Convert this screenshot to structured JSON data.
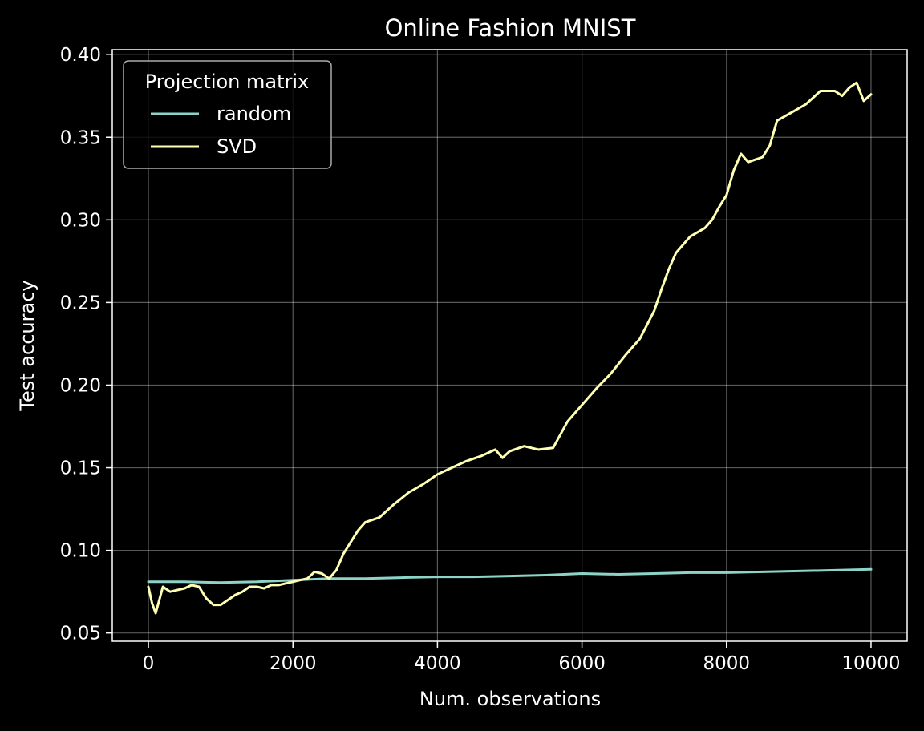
{
  "chart_data": {
    "type": "line",
    "title": "Online Fashion MNIST",
    "xlabel": "Num. observations",
    "ylabel": "Test accuracy",
    "xlim": [
      -500,
      10500
    ],
    "ylim": [
      0.045,
      0.403
    ],
    "xticks": [
      0,
      2000,
      4000,
      6000,
      8000,
      10000
    ],
    "xtick_labels": [
      "0",
      "2000",
      "4000",
      "6000",
      "8000",
      "10000"
    ],
    "yticks": [
      0.05,
      0.1,
      0.15,
      0.2,
      0.25,
      0.3,
      0.35,
      0.4
    ],
    "ytick_labels": [
      "0.05",
      "0.10",
      "0.15",
      "0.20",
      "0.25",
      "0.30",
      "0.35",
      "0.40"
    ],
    "grid": true,
    "legend": {
      "title": "Projection matrix",
      "placement": "upper-left"
    },
    "series": [
      {
        "name": "random",
        "color": "#8dd3c7",
        "points": [
          [
            0,
            0.081
          ],
          [
            500,
            0.081
          ],
          [
            1000,
            0.0805
          ],
          [
            1500,
            0.081
          ],
          [
            2000,
            0.082
          ],
          [
            2500,
            0.083
          ],
          [
            3000,
            0.083
          ],
          [
            3500,
            0.0835
          ],
          [
            4000,
            0.084
          ],
          [
            4500,
            0.084
          ],
          [
            5000,
            0.0845
          ],
          [
            5500,
            0.085
          ],
          [
            6000,
            0.086
          ],
          [
            6500,
            0.0855
          ],
          [
            7000,
            0.086
          ],
          [
            7500,
            0.0865
          ],
          [
            8000,
            0.0865
          ],
          [
            8500,
            0.087
          ],
          [
            9000,
            0.0875
          ],
          [
            9500,
            0.088
          ],
          [
            10000,
            0.0885
          ]
        ]
      },
      {
        "name": "SVD",
        "color": "#ffffb3",
        "points": [
          [
            0,
            0.078
          ],
          [
            50,
            0.068
          ],
          [
            100,
            0.062
          ],
          [
            150,
            0.07
          ],
          [
            200,
            0.078
          ],
          [
            300,
            0.075
          ],
          [
            400,
            0.076
          ],
          [
            500,
            0.077
          ],
          [
            600,
            0.079
          ],
          [
            700,
            0.078
          ],
          [
            800,
            0.071
          ],
          [
            900,
            0.067
          ],
          [
            1000,
            0.067
          ],
          [
            1100,
            0.07
          ],
          [
            1200,
            0.073
          ],
          [
            1300,
            0.075
          ],
          [
            1400,
            0.078
          ],
          [
            1500,
            0.078
          ],
          [
            1600,
            0.077
          ],
          [
            1700,
            0.079
          ],
          [
            1800,
            0.079
          ],
          [
            1900,
            0.08
          ],
          [
            2000,
            0.081
          ],
          [
            2100,
            0.082
          ],
          [
            2200,
            0.083
          ],
          [
            2300,
            0.087
          ],
          [
            2400,
            0.086
          ],
          [
            2500,
            0.083
          ],
          [
            2600,
            0.088
          ],
          [
            2700,
            0.098
          ],
          [
            2800,
            0.105
          ],
          [
            2900,
            0.112
          ],
          [
            3000,
            0.117
          ],
          [
            3200,
            0.12
          ],
          [
            3400,
            0.128
          ],
          [
            3600,
            0.135
          ],
          [
            3800,
            0.14
          ],
          [
            4000,
            0.146
          ],
          [
            4200,
            0.15
          ],
          [
            4400,
            0.154
          ],
          [
            4600,
            0.157
          ],
          [
            4800,
            0.161
          ],
          [
            4900,
            0.156
          ],
          [
            5000,
            0.16
          ],
          [
            5200,
            0.163
          ],
          [
            5400,
            0.161
          ],
          [
            5600,
            0.162
          ],
          [
            5700,
            0.17
          ],
          [
            5800,
            0.178
          ],
          [
            6000,
            0.188
          ],
          [
            6200,
            0.198
          ],
          [
            6400,
            0.207
          ],
          [
            6600,
            0.218
          ],
          [
            6800,
            0.228
          ],
          [
            7000,
            0.245
          ],
          [
            7100,
            0.258
          ],
          [
            7200,
            0.27
          ],
          [
            7300,
            0.28
          ],
          [
            7500,
            0.29
          ],
          [
            7700,
            0.295
          ],
          [
            7800,
            0.3
          ],
          [
            7900,
            0.308
          ],
          [
            8000,
            0.315
          ],
          [
            8100,
            0.33
          ],
          [
            8200,
            0.34
          ],
          [
            8300,
            0.335
          ],
          [
            8500,
            0.338
          ],
          [
            8600,
            0.345
          ],
          [
            8700,
            0.36
          ],
          [
            8900,
            0.365
          ],
          [
            9100,
            0.37
          ],
          [
            9300,
            0.378
          ],
          [
            9500,
            0.378
          ],
          [
            9600,
            0.375
          ],
          [
            9700,
            0.38
          ],
          [
            9800,
            0.383
          ],
          [
            9900,
            0.372
          ],
          [
            10000,
            0.376
          ]
        ]
      }
    ]
  }
}
